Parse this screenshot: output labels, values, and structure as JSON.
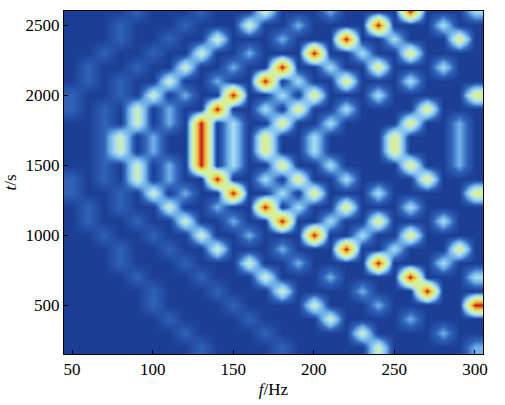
{
  "chart_data": {
    "type": "heatmap",
    "x_label": "f/Hz",
    "y_label": "t/s",
    "x": [
      50,
      60,
      70,
      80,
      90,
      100,
      110,
      120,
      130,
      140,
      150,
      160,
      170,
      180,
      190,
      200,
      210,
      220,
      230,
      240,
      250,
      260,
      270,
      280,
      290,
      300
    ],
    "y": [
      200,
      300,
      400,
      500,
      600,
      700,
      800,
      900,
      1000,
      1100,
      1200,
      1300,
      1400,
      1500,
      1600,
      1700,
      1800,
      1900,
      2000,
      2100,
      2200,
      2300,
      2400,
      2500,
      2600
    ],
    "cells": [
      [
        1,
        1,
        1,
        1,
        1,
        1,
        1,
        1,
        2,
        1,
        1,
        1,
        1,
        2,
        1,
        1,
        1,
        1,
        1,
        5,
        1,
        1,
        1,
        1,
        1,
        3
      ],
      [
        1,
        1,
        1,
        1,
        1,
        1,
        1,
        2,
        1,
        1,
        1,
        1,
        2,
        1,
        1,
        1,
        1,
        1,
        5,
        1,
        1,
        1,
        1,
        3,
        1,
        1
      ],
      [
        1,
        1,
        1,
        1,
        1,
        1,
        2,
        1,
        1,
        1,
        1,
        2,
        1,
        1,
        1,
        1,
        5,
        1,
        1,
        1,
        1,
        3,
        1,
        1,
        1,
        1
      ],
      [
        1,
        1,
        1,
        1,
        1,
        2,
        1,
        1,
        1,
        1,
        2,
        1,
        1,
        1,
        1,
        5,
        1,
        1,
        1,
        3,
        1,
        1,
        1,
        1,
        1,
        10
      ],
      [
        1,
        1,
        1,
        1,
        1,
        2,
        1,
        1,
        1,
        2,
        1,
        1,
        1,
        5,
        1,
        1,
        1,
        1,
        3,
        1,
        1,
        1,
        10,
        1,
        1,
        1
      ],
      [
        1,
        1,
        1,
        1,
        2,
        1,
        1,
        1,
        2,
        1,
        1,
        1,
        5,
        1,
        1,
        1,
        3,
        1,
        1,
        1,
        1,
        10,
        1,
        1,
        1,
        4
      ],
      [
        1,
        1,
        1,
        2,
        1,
        1,
        1,
        2,
        1,
        1,
        1,
        5,
        1,
        1,
        3,
        1,
        1,
        1,
        1,
        10,
        1,
        1,
        1,
        4,
        1,
        1
      ],
      [
        1,
        1,
        1,
        2,
        1,
        1,
        2,
        1,
        1,
        5,
        1,
        1,
        1,
        3,
        1,
        1,
        1,
        10,
        1,
        1,
        4,
        1,
        1,
        1,
        6,
        1
      ],
      [
        1,
        1,
        2,
        1,
        1,
        2,
        1,
        1,
        5,
        1,
        1,
        3,
        1,
        1,
        1,
        10,
        1,
        1,
        4,
        1,
        1,
        6,
        1,
        1,
        1,
        1
      ],
      [
        1,
        2,
        1,
        1,
        2,
        1,
        1,
        5,
        1,
        1,
        3,
        1,
        1,
        10,
        1,
        1,
        4,
        1,
        1,
        6,
        1,
        1,
        1,
        4,
        1,
        1
      ],
      [
        1,
        2,
        1,
        2,
        1,
        1,
        5,
        1,
        1,
        3,
        1,
        1,
        10,
        1,
        4,
        1,
        1,
        6,
        1,
        1,
        1,
        4,
        1,
        1,
        1,
        1
      ],
      [
        2,
        1,
        1,
        2,
        1,
        5,
        1,
        3,
        1,
        1,
        10,
        1,
        1,
        4,
        1,
        6,
        1,
        1,
        1,
        4,
        1,
        1,
        1,
        1,
        1,
        6
      ],
      [
        2,
        1,
        2,
        1,
        5,
        1,
        3,
        1,
        1,
        10,
        1,
        1,
        4,
        1,
        6,
        1,
        1,
        4,
        1,
        1,
        1,
        1,
        6,
        1,
        1,
        1
      ],
      [
        1,
        1,
        2,
        1,
        5,
        1,
        3,
        1,
        10,
        1,
        4,
        1,
        1,
        6,
        1,
        1,
        4,
        1,
        1,
        1,
        1,
        6,
        1,
        1,
        3,
        1
      ],
      [
        1,
        1,
        2,
        5,
        1,
        3,
        1,
        1,
        10,
        1,
        4,
        1,
        6,
        1,
        1,
        4,
        1,
        1,
        1,
        1,
        6,
        1,
        1,
        1,
        3,
        1
      ],
      [
        1,
        1,
        2,
        5,
        1,
        3,
        1,
        1,
        10,
        1,
        4,
        1,
        6,
        1,
        1,
        4,
        1,
        1,
        1,
        1,
        6,
        1,
        1,
        1,
        3,
        1
      ],
      [
        1,
        1,
        2,
        1,
        5,
        1,
        3,
        1,
        10,
        1,
        4,
        1,
        1,
        6,
        1,
        1,
        4,
        1,
        1,
        1,
        1,
        6,
        1,
        1,
        3,
        1
      ],
      [
        2,
        1,
        2,
        1,
        5,
        1,
        3,
        1,
        1,
        10,
        1,
        1,
        4,
        1,
        6,
        1,
        1,
        4,
        1,
        1,
        1,
        1,
        6,
        1,
        1,
        1
      ],
      [
        2,
        1,
        1,
        2,
        1,
        5,
        1,
        3,
        1,
        1,
        10,
        1,
        1,
        4,
        1,
        6,
        1,
        1,
        1,
        4,
        1,
        1,
        1,
        1,
        1,
        6
      ],
      [
        1,
        2,
        1,
        2,
        1,
        1,
        5,
        1,
        1,
        3,
        1,
        1,
        10,
        1,
        4,
        1,
        1,
        6,
        1,
        1,
        1,
        4,
        1,
        1,
        1,
        1
      ],
      [
        1,
        2,
        1,
        1,
        2,
        1,
        1,
        5,
        1,
        1,
        3,
        1,
        1,
        10,
        1,
        1,
        4,
        1,
        1,
        6,
        1,
        1,
        1,
        4,
        1,
        1
      ],
      [
        1,
        1,
        2,
        1,
        1,
        2,
        1,
        1,
        5,
        1,
        1,
        3,
        1,
        1,
        1,
        10,
        1,
        1,
        4,
        1,
        1,
        6,
        1,
        1,
        1,
        1
      ],
      [
        1,
        1,
        1,
        2,
        1,
        1,
        2,
        1,
        1,
        5,
        1,
        1,
        1,
        3,
        1,
        1,
        1,
        10,
        1,
        1,
        4,
        1,
        1,
        1,
        6,
        1
      ],
      [
        1,
        1,
        1,
        2,
        1,
        1,
        1,
        2,
        1,
        1,
        1,
        5,
        1,
        1,
        3,
        1,
        1,
        1,
        1,
        10,
        1,
        1,
        1,
        4,
        1,
        1
      ],
      [
        1,
        1,
        1,
        1,
        2,
        1,
        1,
        1,
        2,
        1,
        1,
        1,
        5,
        1,
        1,
        1,
        3,
        1,
        1,
        1,
        1,
        10,
        1,
        1,
        1,
        4
      ]
    ],
    "xlim": [
      45,
      305
    ],
    "ylim": [
      150,
      2600
    ],
    "xticks": [
      50,
      100,
      150,
      200,
      250,
      300
    ],
    "yticks": [
      500,
      1000,
      1500,
      2000,
      2500
    ],
    "tick_labels": true
  }
}
